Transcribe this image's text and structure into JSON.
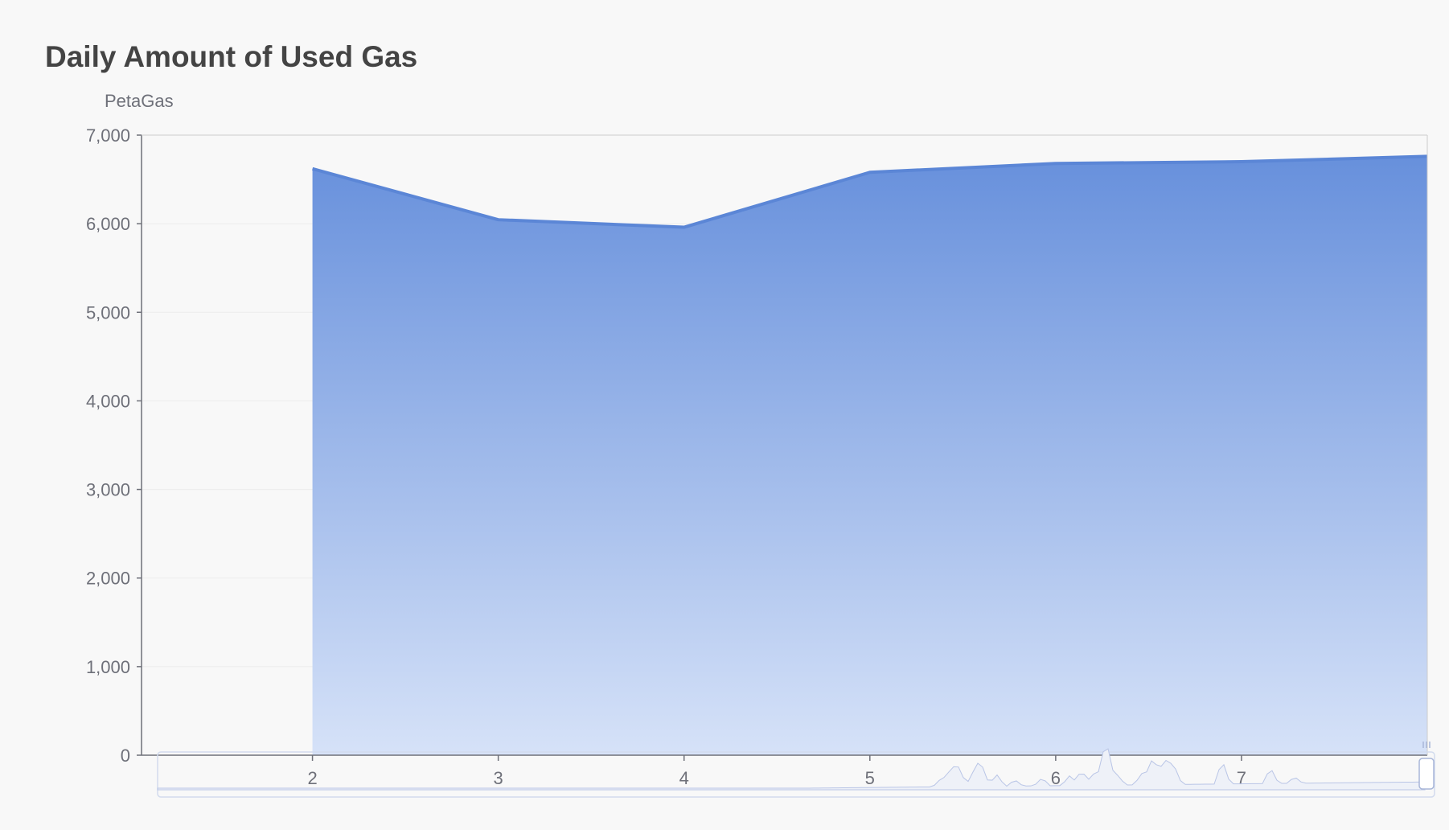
{
  "chart_data": {
    "type": "area",
    "title": "Daily Amount of Used Gas",
    "xlabel": "",
    "ylabel": "PetaGas",
    "x": [
      2,
      3,
      4,
      5,
      6,
      7,
      8
    ],
    "x_tick_labels": [
      "2",
      "3",
      "4",
      "5",
      "6",
      "7"
    ],
    "series": [
      {
        "values": [
          6620,
          6045,
          5960,
          6580,
          6680,
          6700,
          6760
        ]
      }
    ],
    "xlim": [
      1.08,
      8
    ],
    "ylim": [
      0,
      7000
    ],
    "y_ticks": [
      0,
      1000,
      2000,
      3000,
      4000,
      5000,
      6000,
      7000
    ],
    "y_tick_labels": [
      "0",
      "1,000",
      "2,000",
      "3,000",
      "4,000",
      "5,000",
      "6,000",
      "7,000"
    ],
    "grid": true,
    "legend": "none",
    "colors": {
      "line": "#5b86d6",
      "fill_top": "#6790dc",
      "fill_bottom": "#d6e2f8",
      "axis": "#6e7079",
      "grid": "#ececec",
      "slider_border": "#d2dbee",
      "slider_fill": "#eef1f8"
    }
  }
}
